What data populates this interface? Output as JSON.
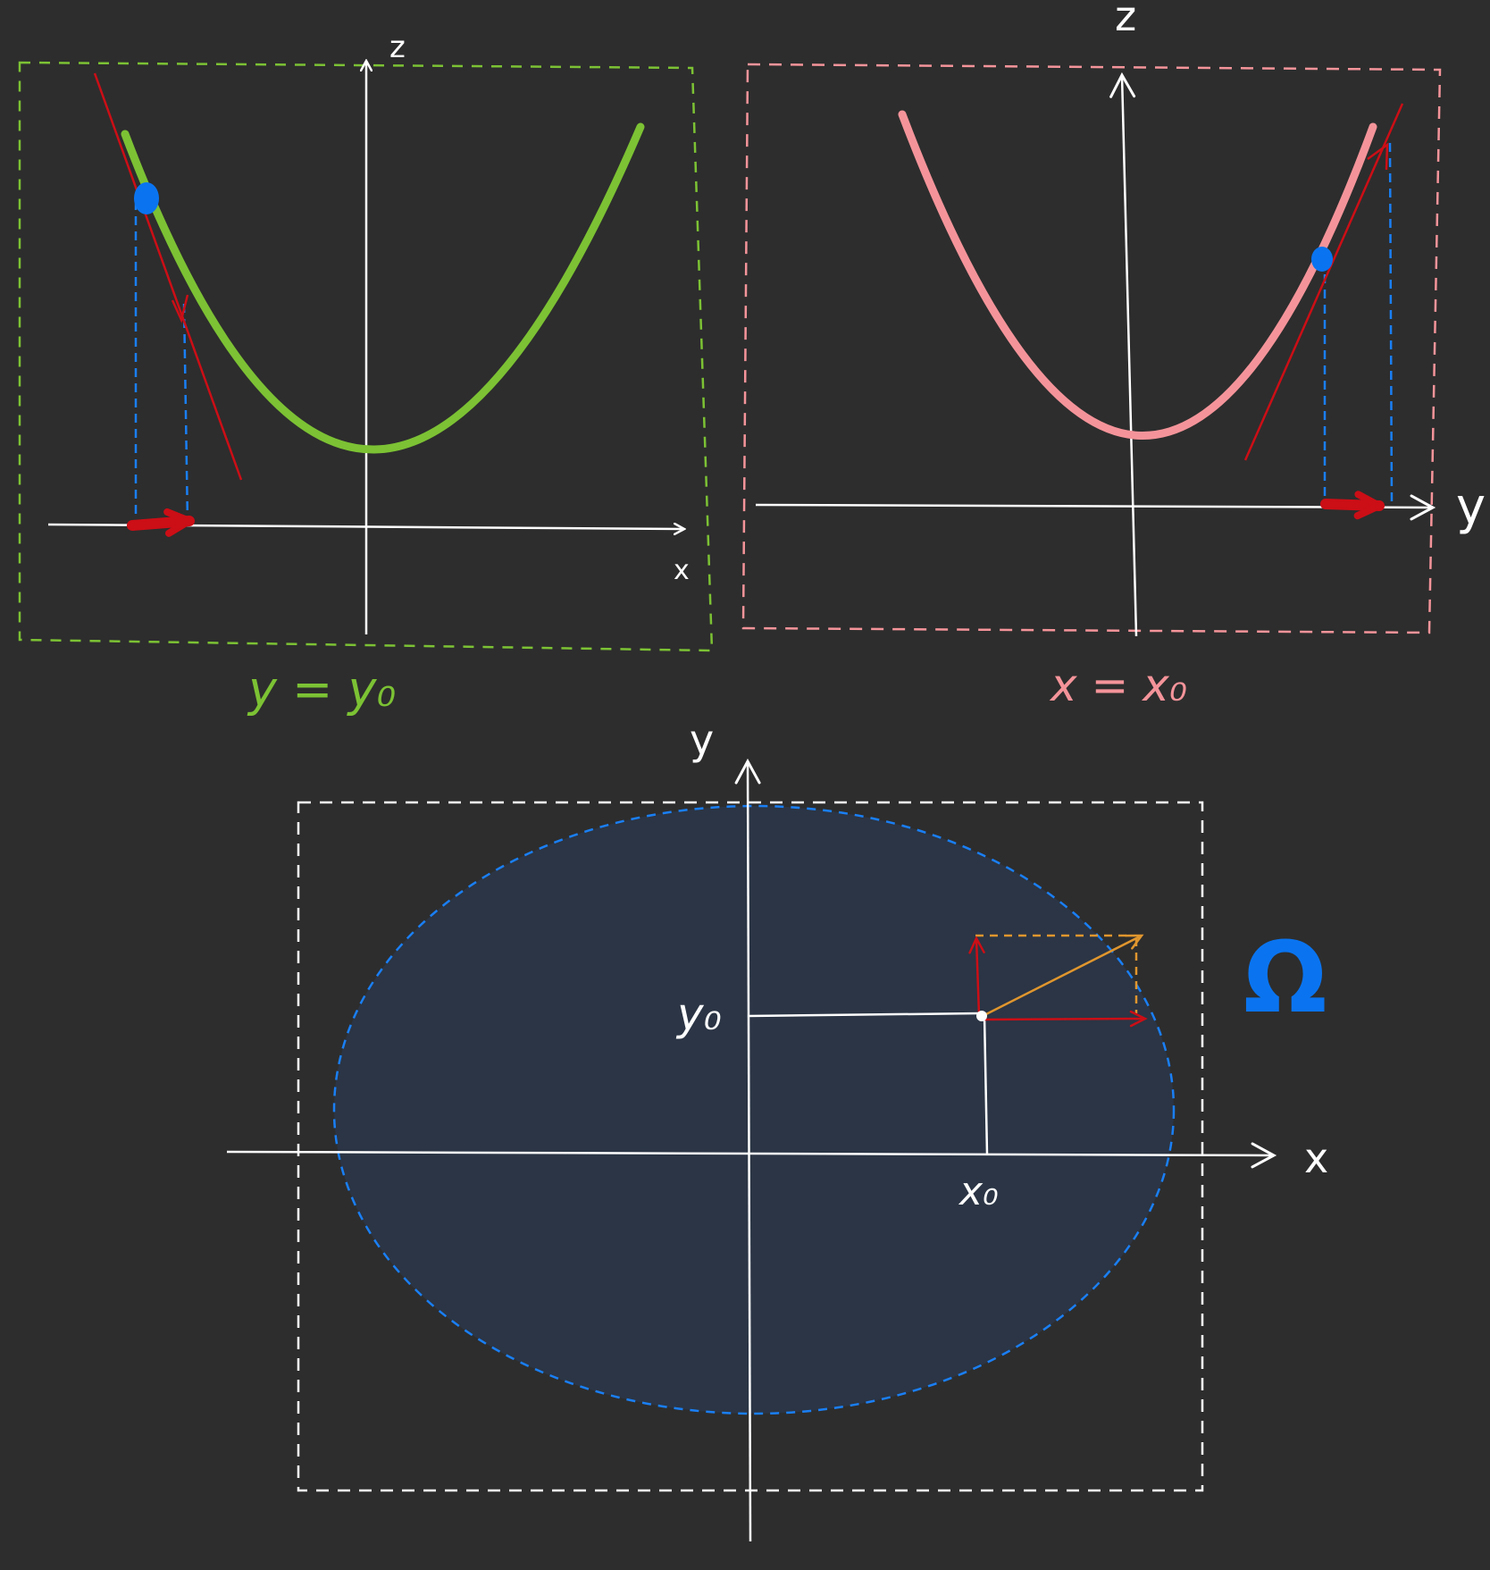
{
  "colors": {
    "background": "#2d2d2d",
    "axis": "#ffffff",
    "green_curve": "#7cc234",
    "pink_curve": "#f4949a",
    "tangent_red": "#cc0e16",
    "point_blue": "#0a74f0",
    "dashed_blue": "#1a7ff5",
    "orange_vector": "#e0962e",
    "domain_fill": "#2b3545"
  },
  "left_panel": {
    "axis_z_label": "z",
    "axis_x_label": "x",
    "caption": "y = y₀",
    "icons": [
      "tangent-line",
      "point",
      "direction-arrow"
    ]
  },
  "right_panel": {
    "axis_z_label": "z",
    "axis_y_label": "y",
    "caption": "x = x₀",
    "icons": [
      "tangent-line",
      "point",
      "direction-arrow"
    ]
  },
  "bottom_panel": {
    "axis_y_label": "y",
    "axis_x_label": "x",
    "y0_label": "y₀",
    "x0_label": "x₀",
    "domain_label": "Ω",
    "icons": [
      "gradient-vector",
      "component-arrows",
      "domain-ellipse"
    ]
  }
}
